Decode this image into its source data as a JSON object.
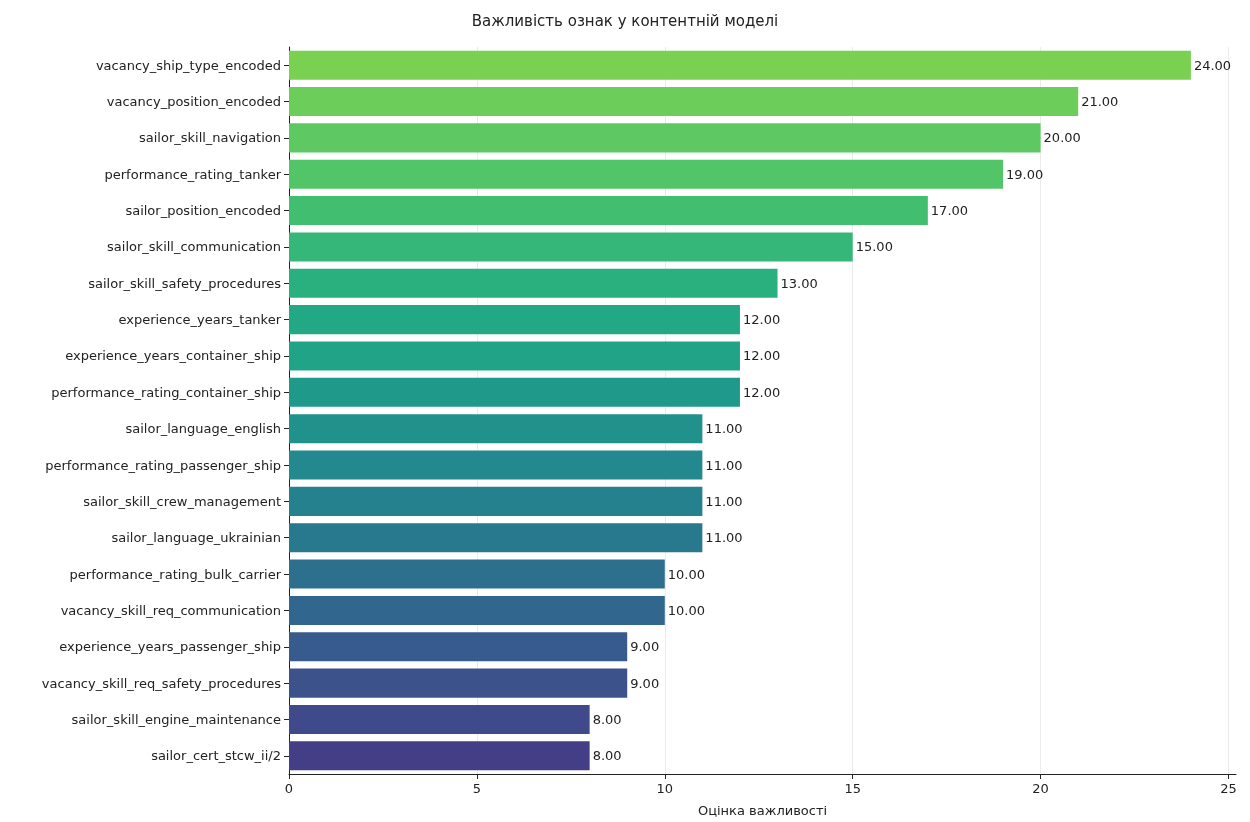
{
  "chart_data": {
    "type": "bar",
    "orientation": "horizontal",
    "title": "Важливість ознак у контентній моделі",
    "xlabel": "Оцінка важливості",
    "categories": [
      "vacancy_ship_type_encoded",
      "vacancy_position_encoded",
      "sailor_skill_navigation",
      "performance_rating_tanker",
      "sailor_position_encoded",
      "sailor_skill_communication",
      "sailor_skill_safety_procedures",
      "experience_years_tanker",
      "experience_years_container_ship",
      "performance_rating_container_ship",
      "sailor_language_english",
      "performance_rating_passenger_ship",
      "sailor_skill_crew_management",
      "sailor_language_ukrainian",
      "performance_rating_bulk_carrier",
      "vacancy_skill_req_communication",
      "experience_years_passenger_ship",
      "vacancy_skill_req_safety_procedures",
      "sailor_skill_engine_maintenance",
      "sailor_cert_stcw_ii/2"
    ],
    "values": [
      24,
      21,
      20,
      19,
      17,
      15,
      13,
      12,
      12,
      12,
      11,
      11,
      11,
      11,
      10,
      10,
      9,
      9,
      8,
      8
    ],
    "value_labels": [
      "24.00",
      "21.00",
      "20.00",
      "19.00",
      "17.00",
      "15.00",
      "13.00",
      "12.00",
      "12.00",
      "12.00",
      "11.00",
      "11.00",
      "11.00",
      "11.00",
      "10.00",
      "10.00",
      "9.00",
      "9.00",
      "8.00",
      "8.00"
    ],
    "colors": [
      "#7ad151",
      "#6ccd5a",
      "#5ec962",
      "#52c569",
      "#42be71",
      "#35b779",
      "#2ab07f",
      "#22a884",
      "#20a386",
      "#1f9a8a",
      "#21918c",
      "#23898e",
      "#26818e",
      "#29798e",
      "#2d708e",
      "#31668e",
      "#375b8d",
      "#3b528b",
      "#3e4a89",
      "#433e85"
    ],
    "xlim": [
      0,
      25.2
    ],
    "xticks": [
      0,
      5,
      10,
      15,
      20,
      25
    ],
    "grid": "x"
  }
}
